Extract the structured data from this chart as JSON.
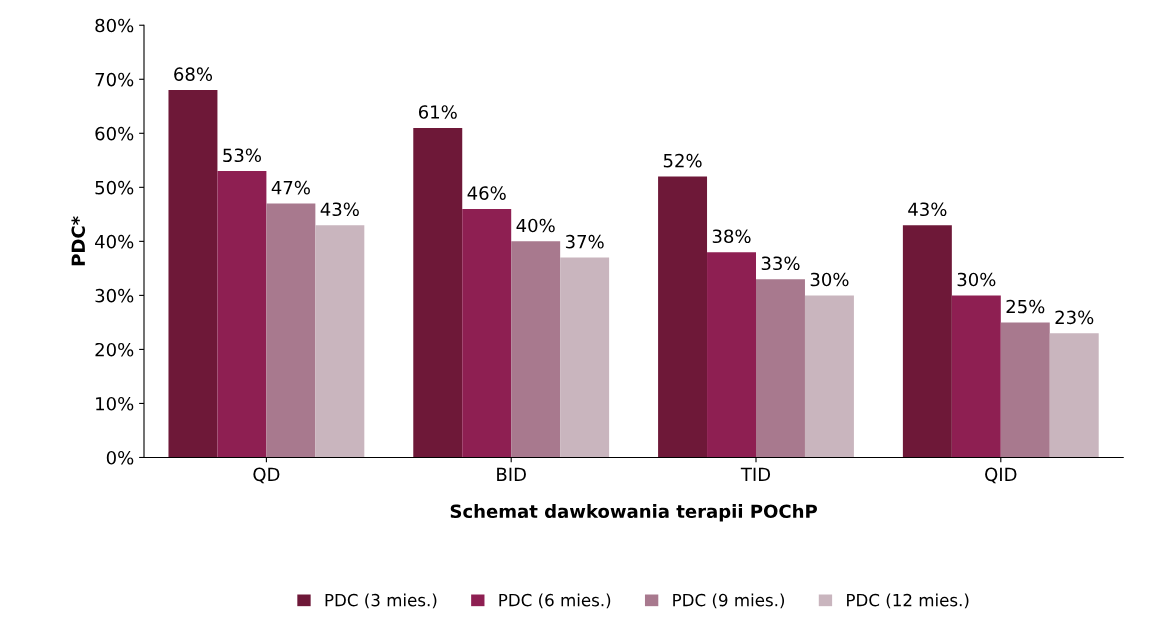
{
  "chart_data": {
    "type": "bar",
    "xlabel": "Schemat dawkowania terapii POChP",
    "ylabel": "PDC*",
    "categories": [
      "QD",
      "BID",
      "TID",
      "QID"
    ],
    "series": [
      {
        "name": "PDC (3 mies.)",
        "color": "#6e1838",
        "values": [
          68,
          61,
          52,
          43
        ],
        "value_labels": [
          "68%",
          "61%",
          "52%",
          "43%"
        ]
      },
      {
        "name": "PDC (6 mies.)",
        "color": "#8e1f52",
        "values": [
          53,
          46,
          38,
          30
        ],
        "value_labels": [
          "53%",
          "46%",
          "38%",
          "30%"
        ]
      },
      {
        "name": "PDC (9 mies.)",
        "color": "#a8798e",
        "values": [
          47,
          40,
          33,
          25
        ],
        "value_labels": [
          "47%",
          "40%",
          "33%",
          "25%"
        ]
      },
      {
        "name": "PDC (12 mies.)",
        "color": "#c9b5be",
        "values": [
          43,
          37,
          30,
          23
        ],
        "value_labels": [
          "43%",
          "37%",
          "30%",
          "23%"
        ]
      }
    ],
    "ylim": [
      0,
      80
    ],
    "yticks": [
      {
        "value": 0,
        "label": "0%"
      },
      {
        "value": 10,
        "label": "10%"
      },
      {
        "value": 20,
        "label": "20%"
      },
      {
        "value": 30,
        "label": "30%"
      },
      {
        "value": 40,
        "label": "40%"
      },
      {
        "value": 50,
        "label": "50%"
      },
      {
        "value": 60,
        "label": "60%"
      },
      {
        "value": 70,
        "label": "70%"
      },
      {
        "value": 80,
        "label": "80%"
      }
    ],
    "grid": false,
    "legend": "bottom"
  }
}
